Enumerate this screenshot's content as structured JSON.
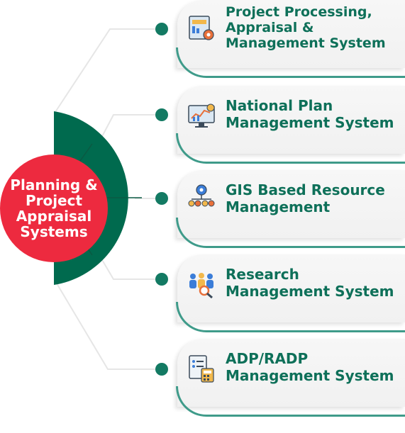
{
  "hub": {
    "title": "Planning & Project Appraisal Systems"
  },
  "colors": {
    "hub_red": "#ed2a3f",
    "dark_green": "#006a4e",
    "text_green": "#0e7059",
    "dot_green": "#137a63",
    "curve_teal": "#3f9b8a"
  },
  "systems": [
    {
      "title": "Project Processing, Appraisal & Management System",
      "icon": "dashboard-gear-icon"
    },
    {
      "title": "National Plan Management System",
      "icon": "monitor-chart-icon"
    },
    {
      "title": "GIS Based Resource Management",
      "icon": "gear-network-icon"
    },
    {
      "title": "Research Management System",
      "icon": "people-magnifier-icon"
    },
    {
      "title": "ADP/RADP Management System",
      "icon": "document-calculator-icon"
    }
  ]
}
